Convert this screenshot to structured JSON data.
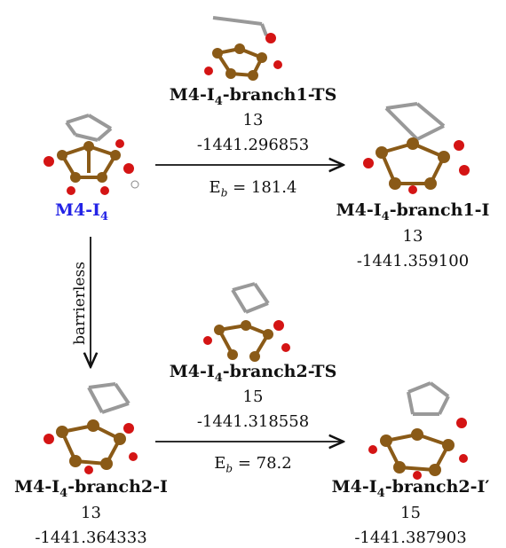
{
  "nodes": {
    "m4_i4": {
      "name_main": "M4-I",
      "name_sub": "4"
    },
    "branch1_ts": {
      "name_pre": "M4-I",
      "name_sub": "4",
      "name_post": "-branch1-TS",
      "mult": "13",
      "energy": "-1441.296853"
    },
    "branch1_i": {
      "name_pre": "M4-I",
      "name_sub": "4",
      "name_post": "-branch1-I",
      "mult": "13",
      "energy": "-1441.359100"
    },
    "branch2_ts": {
      "name_pre": "M4-I",
      "name_sub": "4",
      "name_post": "-branch2-TS",
      "mult": "15",
      "energy": "-1441.318558"
    },
    "branch2_i": {
      "name_pre": "M4-I",
      "name_sub": "4",
      "name_post": "-branch2-I",
      "mult": "13",
      "energy": "-1441.364333"
    },
    "branch2_ip": {
      "name_pre": "M4-I",
      "name_sub": "4",
      "name_post": "-branch2-I′",
      "mult": "15",
      "energy": "-1441.387903"
    }
  },
  "edges": {
    "top": {
      "eb_prefix": "E",
      "eb_sub": "b",
      "eb_value": " = 181.4"
    },
    "bottom": {
      "eb_prefix": "E",
      "eb_sub": "b",
      "eb_value": " = 78.2"
    },
    "vertical": {
      "label": "barrierless"
    }
  },
  "colors": {
    "accent_blue": "#2323e6",
    "iron": "#8a5a17",
    "oxygen": "#d41414",
    "carbon": "#8c8c8c",
    "hydrogen": "#ffffff"
  },
  "icons": [
    "molecule-icon"
  ]
}
